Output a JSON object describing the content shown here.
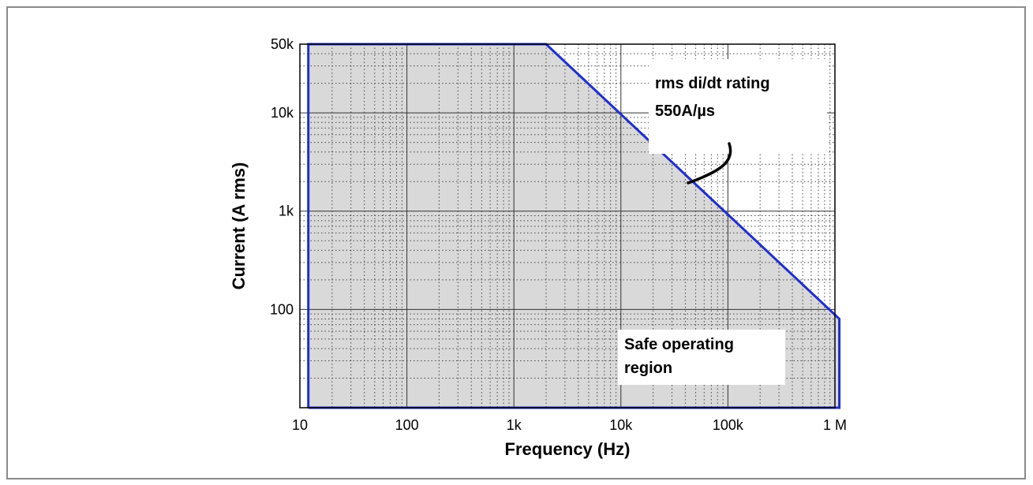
{
  "chart_data": {
    "type": "area",
    "xlabel": "Frequency (Hz)",
    "ylabel": "Current (A rms)",
    "x_scale": "log",
    "y_scale": "log",
    "xlim": [
      10,
      1000000
    ],
    "ylim": [
      10,
      50000
    ],
    "x_ticks": [
      {
        "value": 10,
        "label": "10"
      },
      {
        "value": 100,
        "label": "100"
      },
      {
        "value": 1000,
        "label": "1k"
      },
      {
        "value": 10000,
        "label": "10k"
      },
      {
        "value": 100000,
        "label": "100k"
      },
      {
        "value": 1000000,
        "label": "1 M"
      }
    ],
    "y_ticks": [
      {
        "value": 100,
        "label": "100"
      },
      {
        "value": 1000,
        "label": "1k"
      },
      {
        "value": 10000,
        "label": "10k"
      },
      {
        "value": 50000,
        "label": "50k"
      }
    ],
    "grid": true,
    "series": [
      {
        "x": [
          12,
          12,
          2000,
          1100000,
          1100000,
          12
        ],
        "y": [
          10,
          50000,
          50000,
          80,
          10,
          10
        ],
        "color": "#1f2ecc",
        "fill": "#d9d9d9"
      }
    ],
    "annotations": [
      {
        "line1": "rms di/dt rating",
        "line2": "550A/µs"
      },
      {
        "line1": "Safe operating",
        "line2": "region"
      }
    ]
  }
}
